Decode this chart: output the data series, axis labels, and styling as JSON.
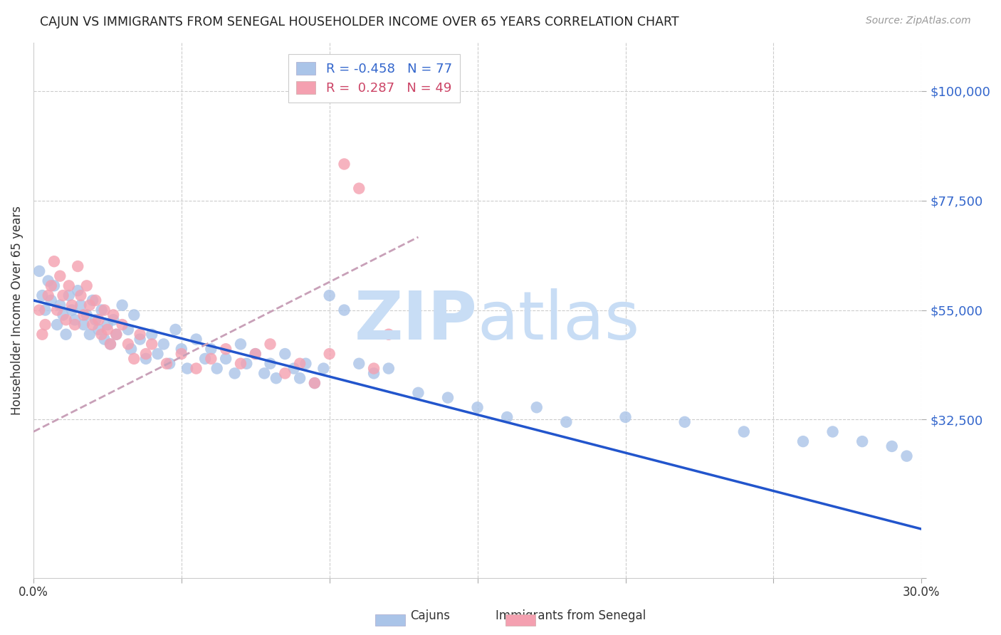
{
  "title": "CAJUN VS IMMIGRANTS FROM SENEGAL HOUSEHOLDER INCOME OVER 65 YEARS CORRELATION CHART",
  "source": "Source: ZipAtlas.com",
  "ylabel": "Householder Income Over 65 years",
  "xlim": [
    0.0,
    0.3
  ],
  "ylim": [
    0,
    110000
  ],
  "yticks": [
    0,
    32500,
    55000,
    77500,
    100000
  ],
  "ytick_labels": [
    "",
    "$32,500",
    "$55,000",
    "$77,500",
    "$100,000"
  ],
  "xticks": [
    0.0,
    0.05,
    0.1,
    0.15,
    0.2,
    0.25,
    0.3
  ],
  "background_color": "#ffffff",
  "grid_color": "#cccccc",
  "cajun_color": "#aac4e8",
  "senegal_color": "#f4a0b0",
  "cajun_line_color": "#2255cc",
  "senegal_line_color": "#c8a0b8",
  "watermark_color": "#c8ddf5",
  "ytick_color": "#3366cc",
  "cajun_R": -0.458,
  "cajun_N": 77,
  "senegal_R": 0.287,
  "senegal_N": 49,
  "cajun_x": [
    0.002,
    0.003,
    0.004,
    0.005,
    0.006,
    0.007,
    0.008,
    0.009,
    0.01,
    0.011,
    0.012,
    0.013,
    0.014,
    0.015,
    0.016,
    0.017,
    0.018,
    0.019,
    0.02,
    0.021,
    0.022,
    0.023,
    0.024,
    0.025,
    0.026,
    0.027,
    0.028,
    0.03,
    0.032,
    0.033,
    0.034,
    0.036,
    0.038,
    0.04,
    0.042,
    0.044,
    0.046,
    0.048,
    0.05,
    0.052,
    0.055,
    0.058,
    0.06,
    0.062,
    0.065,
    0.068,
    0.07,
    0.072,
    0.075,
    0.078,
    0.08,
    0.082,
    0.085,
    0.088,
    0.09,
    0.092,
    0.095,
    0.098,
    0.1,
    0.105,
    0.11,
    0.115,
    0.12,
    0.13,
    0.14,
    0.15,
    0.16,
    0.17,
    0.18,
    0.2,
    0.22,
    0.24,
    0.26,
    0.27,
    0.28,
    0.29,
    0.295
  ],
  "cajun_y": [
    63000,
    58000,
    55000,
    61000,
    57000,
    60000,
    52000,
    56000,
    54000,
    50000,
    58000,
    55000,
    53000,
    59000,
    56000,
    52000,
    54000,
    50000,
    57000,
    53000,
    51000,
    55000,
    49000,
    52000,
    48000,
    53000,
    50000,
    56000,
    51000,
    47000,
    54000,
    49000,
    45000,
    50000,
    46000,
    48000,
    44000,
    51000,
    47000,
    43000,
    49000,
    45000,
    47000,
    43000,
    45000,
    42000,
    48000,
    44000,
    46000,
    42000,
    44000,
    41000,
    46000,
    43000,
    41000,
    44000,
    40000,
    43000,
    58000,
    55000,
    44000,
    42000,
    43000,
    38000,
    37000,
    35000,
    33000,
    35000,
    32000,
    33000,
    32000,
    30000,
    28000,
    30000,
    28000,
    27000,
    25000
  ],
  "senegal_x": [
    0.002,
    0.003,
    0.004,
    0.005,
    0.006,
    0.007,
    0.008,
    0.009,
    0.01,
    0.011,
    0.012,
    0.013,
    0.014,
    0.015,
    0.016,
    0.017,
    0.018,
    0.019,
    0.02,
    0.021,
    0.022,
    0.023,
    0.024,
    0.025,
    0.026,
    0.027,
    0.028,
    0.03,
    0.032,
    0.034,
    0.036,
    0.038,
    0.04,
    0.045,
    0.05,
    0.055,
    0.06,
    0.065,
    0.07,
    0.075,
    0.08,
    0.085,
    0.09,
    0.095,
    0.1,
    0.105,
    0.11,
    0.115,
    0.12
  ],
  "senegal_y": [
    55000,
    50000,
    52000,
    58000,
    60000,
    65000,
    55000,
    62000,
    58000,
    53000,
    60000,
    56000,
    52000,
    64000,
    58000,
    54000,
    60000,
    56000,
    52000,
    57000,
    53000,
    50000,
    55000,
    51000,
    48000,
    54000,
    50000,
    52000,
    48000,
    45000,
    50000,
    46000,
    48000,
    44000,
    46000,
    43000,
    45000,
    47000,
    44000,
    46000,
    48000,
    42000,
    44000,
    40000,
    46000,
    85000,
    80000,
    43000,
    50000
  ],
  "cajun_line_x0": 0.0,
  "cajun_line_y0": 57000,
  "cajun_line_x1": 0.3,
  "cajun_line_y1": 10000,
  "senegal_line_x0": 0.0,
  "senegal_line_y0": 30000,
  "senegal_line_x1": 0.13,
  "senegal_line_y1": 70000
}
